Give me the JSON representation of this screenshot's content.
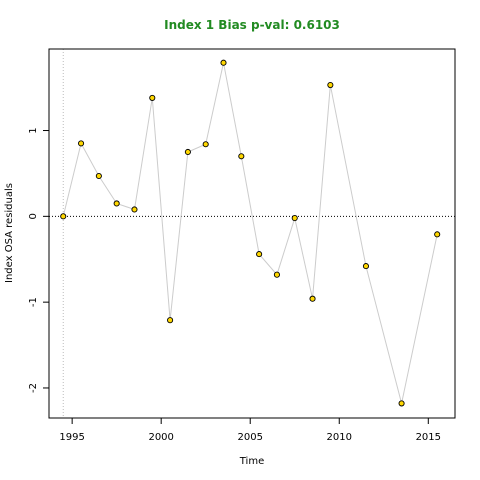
{
  "chart_data": {
    "type": "line",
    "title": "Index 1 Bias p-val: 0.6103",
    "xlabel": "Time",
    "ylabel": "Index OSA residuals",
    "xlim": [
      1993.7,
      2016.5
    ],
    "ylim": [
      -2.35,
      1.95
    ],
    "xticks": [
      1995,
      2000,
      2005,
      2010,
      2015
    ],
    "yticks": [
      -2,
      -1,
      0,
      1
    ],
    "x": [
      1994.5,
      1995.5,
      1996.5,
      1997.5,
      1998.5,
      1999.5,
      2000.5,
      2001.5,
      2002.5,
      2003.5,
      2004.5,
      2005.5,
      2006.5,
      2007.5,
      2008.5,
      2009.5,
      2011.5,
      2013.5,
      2015.5
    ],
    "y": [
      0.0,
      0.85,
      0.47,
      0.15,
      0.08,
      1.38,
      -1.21,
      0.75,
      0.84,
      1.79,
      0.7,
      -0.44,
      -0.68,
      -0.02,
      -0.96,
      1.53,
      -0.58,
      -2.18,
      -0.21
    ],
    "reference_line_y": 0,
    "reference_line_x": 1994.5,
    "colors": {
      "title": "#228B22",
      "point_fill": "#FFD700",
      "point_stroke": "#000000",
      "line": "#CCCCCC"
    }
  }
}
